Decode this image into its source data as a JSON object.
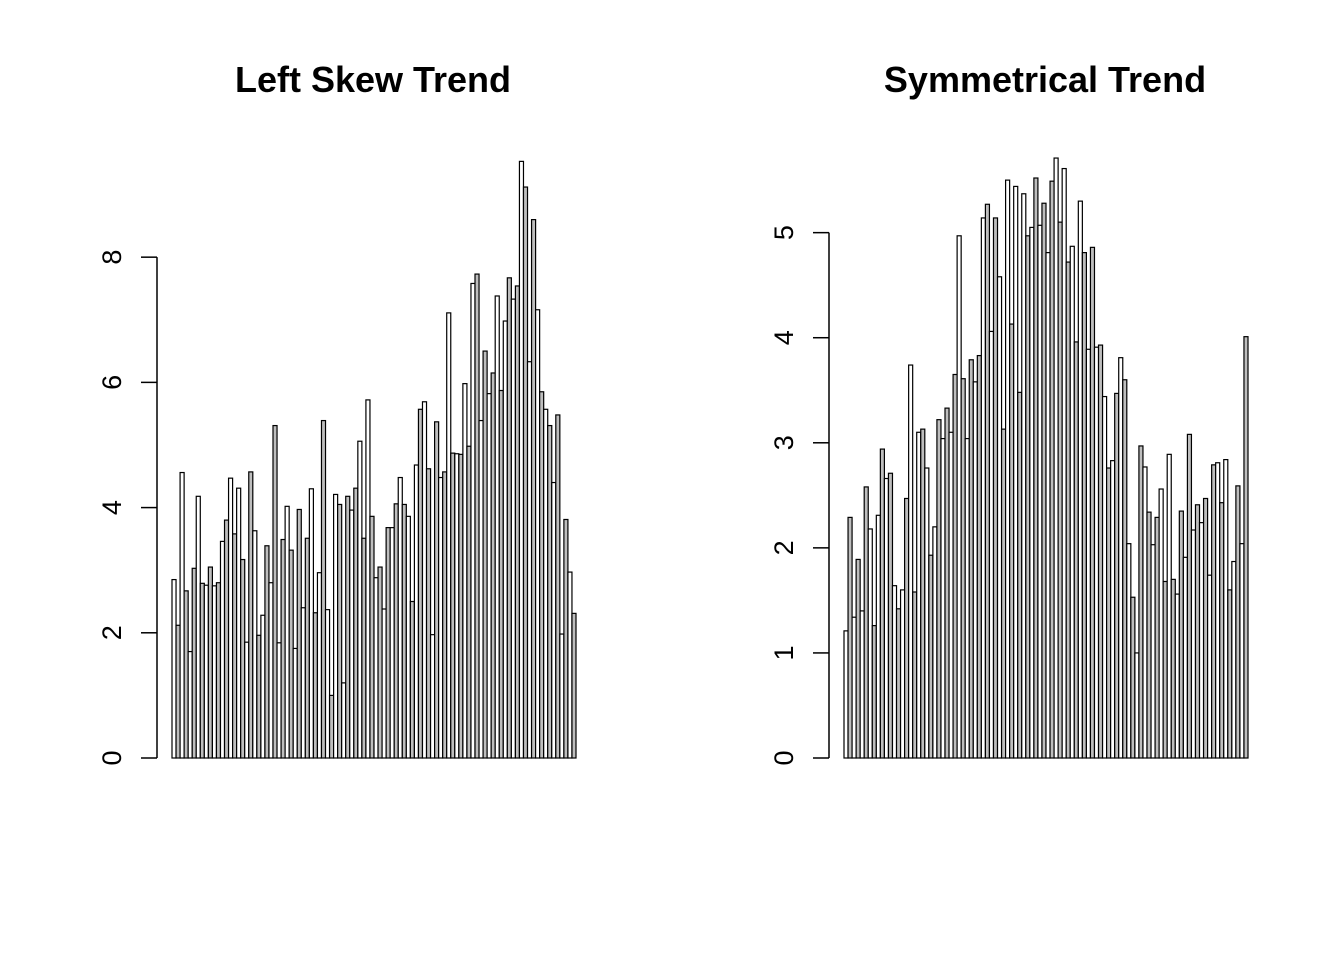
{
  "chart_data": [
    {
      "type": "bar",
      "title": "Left Skew Trend",
      "xlabel": "",
      "ylabel": "",
      "ylim": [
        0,
        9.6
      ],
      "yticks": [
        "0",
        "2",
        "4",
        "6",
        "8"
      ],
      "axes_box": false,
      "bar_fill": "#ffffff",
      "bar_fill_alternate": "#bebebe",
      "bar_border": "#000000",
      "values": [
        2.85,
        2.12,
        4.56,
        2.67,
        1.7,
        3.03,
        4.18,
        2.79,
        2.76,
        3.05,
        2.75,
        2.8,
        3.46,
        3.8,
        4.47,
        3.58,
        4.31,
        3.17,
        1.85,
        4.57,
        3.63,
        1.96,
        2.28,
        3.39,
        2.8,
        5.31,
        1.84,
        3.49,
        4.02,
        3.32,
        1.75,
        3.97,
        2.4,
        3.51,
        4.3,
        2.32,
        2.96,
        5.39,
        2.37,
        1.0,
        4.21,
        4.05,
        1.2,
        4.18,
        3.96,
        4.31,
        5.06,
        3.51,
        5.72,
        3.86,
        2.88,
        3.05,
        2.38,
        3.68,
        3.68,
        4.06,
        4.48,
        4.05,
        3.86,
        2.5,
        4.68,
        5.57,
        5.69,
        4.62,
        1.97,
        5.37,
        4.48,
        4.57,
        7.11,
        4.87,
        4.86,
        4.85,
        5.98,
        4.98,
        7.58,
        7.73,
        5.39,
        6.5,
        5.82,
        6.15,
        7.38,
        5.87,
        6.98,
        7.67,
        7.33,
        7.54,
        9.53,
        9.12,
        6.33,
        8.6,
        7.16,
        5.85,
        5.57,
        5.31,
        4.4,
        5.48,
        1.98,
        3.81,
        2.97,
        2.31
      ]
    },
    {
      "type": "bar",
      "title": "Symmetrical Trend",
      "xlabel": "",
      "ylabel": "",
      "ylim": [
        0,
        5.72
      ],
      "yticks": [
        "0",
        "1",
        "2",
        "3",
        "4",
        "5"
      ],
      "axes_box": false,
      "bar_fill": "#ffffff",
      "bar_fill_alternate": "#bebebe",
      "bar_border": "#000000",
      "values": [
        1.21,
        2.29,
        1.34,
        1.89,
        1.4,
        2.58,
        2.18,
        1.26,
        2.31,
        2.94,
        2.66,
        2.71,
        1.64,
        1.42,
        1.6,
        2.47,
        3.74,
        1.58,
        3.1,
        3.13,
        2.76,
        1.93,
        2.2,
        3.22,
        3.04,
        3.33,
        3.1,
        3.65,
        4.97,
        3.61,
        3.04,
        3.79,
        3.58,
        3.83,
        5.14,
        5.27,
        4.06,
        5.14,
        4.58,
        3.13,
        5.5,
        4.13,
        5.44,
        3.48,
        5.37,
        4.97,
        5.05,
        5.52,
        5.07,
        5.28,
        4.81,
        5.49,
        5.71,
        5.1,
        5.61,
        4.72,
        4.87,
        3.96,
        5.3,
        4.81,
        3.89,
        4.86,
        3.91,
        3.93,
        3.44,
        2.76,
        2.83,
        3.47,
        3.81,
        3.6,
        2.04,
        1.53,
        1.0,
        2.97,
        2.77,
        2.34,
        2.03,
        2.29,
        2.56,
        1.68,
        2.89,
        1.7,
        1.56,
        2.35,
        1.91,
        3.08,
        2.17,
        2.41,
        2.24,
        2.47,
        1.74,
        2.79,
        2.81,
        2.43,
        2.84,
        1.6,
        1.87,
        2.59,
        2.04,
        4.01
      ]
    }
  ]
}
